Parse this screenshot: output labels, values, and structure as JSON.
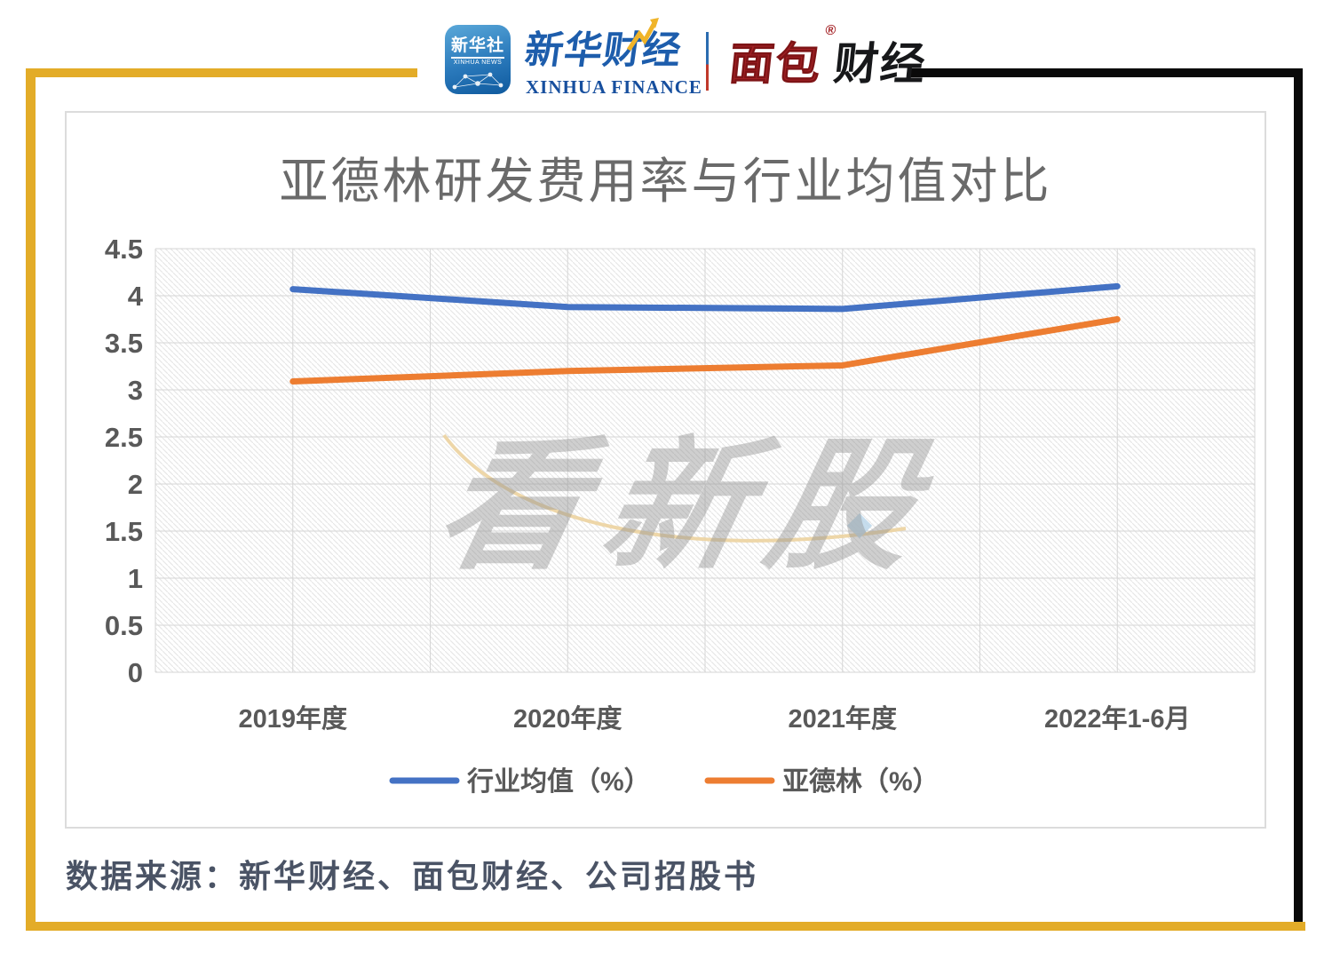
{
  "header": {
    "xinhua_news_badge": {
      "title": "新华社",
      "subtitle": "XINHUA NEWS"
    },
    "xinhua_finance_logo": {
      "cn": "新华财经",
      "en": "XINHUA FINANCE"
    },
    "mianbao_logo": {
      "part_red": "面包",
      "part_black": "财经",
      "registered_mark": "®"
    }
  },
  "watermark": {
    "text": "看新股"
  },
  "footer": {
    "source_note": "数据来源：新华财经、面包财经、公司招股书"
  },
  "colors": {
    "frame_yellow": "#E3AC28",
    "frame_black": "#0A0A0A",
    "series_blue": "#4472C4",
    "series_orange": "#ED7D31",
    "axis_text": "#595959",
    "title_text": "#6A6A6A",
    "gridline": "#D6D6D6"
  },
  "chart_data": {
    "type": "line",
    "title": "亚德林研发费用率与行业均值对比",
    "categories": [
      "2019年度",
      "2020年度",
      "2021年度",
      "2022年1-6月"
    ],
    "series": [
      {
        "name": "行业均值（%）",
        "color": "#4472C4",
        "values": [
          4.07,
          3.88,
          3.86,
          4.1
        ]
      },
      {
        "name": "亚德林（%）",
        "color": "#ED7D31",
        "values": [
          3.09,
          3.2,
          3.26,
          3.75
        ]
      }
    ],
    "xlabel": "",
    "ylabel": "",
    "ylim": [
      0,
      4.5
    ],
    "ytick_step": 0.5,
    "grid": true,
    "plot_background": "diagonal-hatch",
    "legend_position": "bottom"
  }
}
